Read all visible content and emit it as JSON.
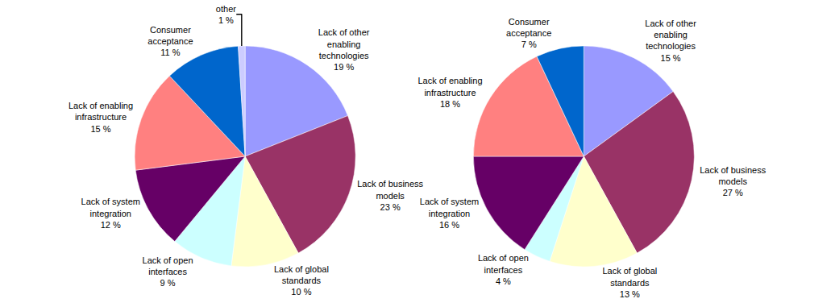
{
  "chart_data": [
    {
      "type": "pie",
      "categories": [
        "Lack of other enabling technologies",
        "Lack of business models",
        "Lack of global standards",
        "Lack of open interfaces",
        "Lack of system integration",
        "Lack of enabling infrastructure",
        "Consumer acceptance",
        "other"
      ],
      "values": [
        19,
        23,
        10,
        9,
        12,
        15,
        11,
        1
      ],
      "value_labels": [
        "19 %",
        "23 %",
        "10 %",
        "9 %",
        "12 %",
        "15 %",
        "11 %",
        "1 %"
      ],
      "colors": [
        "#9999ff",
        "#993366",
        "#ffffcc",
        "#ccffff",
        "#660066",
        "#ff8080",
        "#0066cc",
        "#ccccff"
      ],
      "data_labels": true
    },
    {
      "type": "pie",
      "categories": [
        "Lack of other enabling technologies",
        "Lack of business models",
        "Lack of global standards",
        "Lack of open interfaces",
        "Lack of system integration",
        "Lack of enabling infrastructure",
        "Consumer acceptance"
      ],
      "values": [
        15,
        27,
        13,
        4,
        16,
        18,
        7
      ],
      "value_labels": [
        "15 %",
        "27 %",
        "13 %",
        "4 %",
        "16 %",
        "18 %",
        "7 %"
      ],
      "colors": [
        "#9999ff",
        "#993366",
        "#ffffcc",
        "#ccffff",
        "#660066",
        "#ff8080",
        "#0066cc"
      ],
      "data_labels": true
    }
  ]
}
